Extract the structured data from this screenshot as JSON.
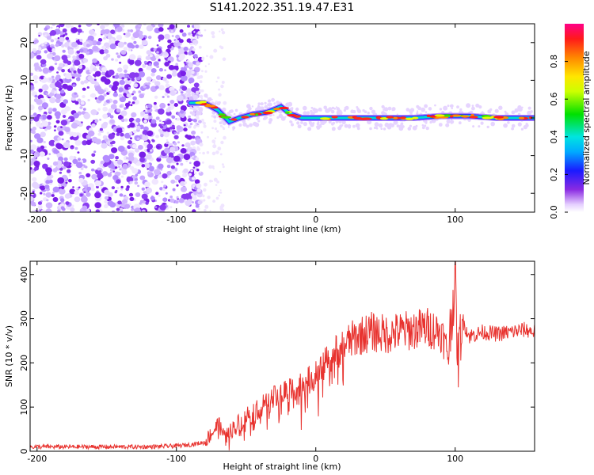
{
  "title": "S141.2022.351.19.47.E31",
  "chart_data": [
    {
      "type": "heatmap",
      "xlabel": "Height of straight line (km)",
      "ylabel": "Frequency (Hz)",
      "xlim": [
        -205,
        157
      ],
      "ylim": [
        -25,
        25
      ],
      "xticks": [
        -200,
        -100,
        0,
        100
      ],
      "yticks": [
        -20,
        -10,
        0,
        10,
        20
      ],
      "colorbar": {
        "label": "Normalized spectral amplitude",
        "range": [
          0,
          1
        ],
        "ticks": [
          "0.0",
          "0.2",
          "0.4",
          "0.6",
          "0.8"
        ],
        "colormap": "rainbow"
      },
      "noise_region": [
        -205,
        -90
      ],
      "ridge": {
        "x": [
          -90,
          -80,
          -70,
          -62,
          -55,
          -45,
          -35,
          -25,
          -18,
          -10,
          0,
          10,
          20,
          30,
          50,
          70,
          90,
          110,
          130,
          157
        ],
        "y": [
          4,
          4,
          2,
          -1,
          0,
          1,
          1.5,
          3,
          1,
          0,
          0,
          0,
          0,
          0,
          0,
          0,
          0.5,
          0.5,
          0,
          0
        ]
      }
    },
    {
      "type": "line",
      "xlabel": "Height of straight line (km)",
      "ylabel": "SNR (10 * v/v)",
      "xlim": [
        -205,
        157
      ],
      "ylim": [
        0,
        430
      ],
      "xticks": [
        -200,
        -100,
        0,
        100
      ],
      "yticks": [
        0,
        100,
        200,
        300,
        400
      ],
      "series": [
        {
          "color": "#e8332f",
          "x": [
            -205,
            -180,
            -160,
            -140,
            -120,
            -100,
            -90,
            -80,
            -75,
            -70,
            -65,
            -60,
            -50,
            -40,
            -30,
            -20,
            -10,
            0,
            10,
            20,
            30,
            40,
            50,
            60,
            70,
            80,
            90,
            95,
            98,
            100,
            102,
            105,
            110,
            120,
            130,
            140,
            150,
            157
          ],
          "y": [
            10,
            10,
            10,
            10,
            10,
            12,
            15,
            20,
            40,
            60,
            30,
            50,
            80,
            100,
            120,
            140,
            150,
            170,
            210,
            240,
            260,
            270,
            265,
            270,
            275,
            280,
            270,
            220,
            330,
            380,
            200,
            300,
            260,
            270,
            265,
            270,
            275,
            270
          ]
        }
      ]
    }
  ]
}
